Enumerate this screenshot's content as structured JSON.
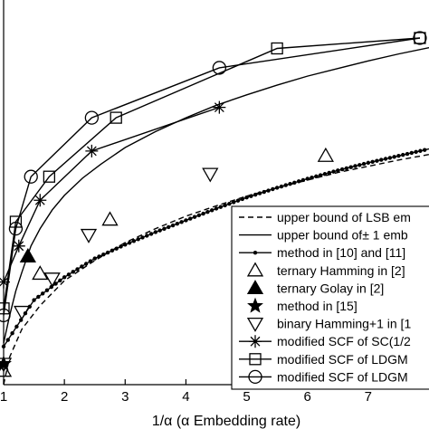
{
  "chart_data": {
    "type": "line",
    "xlabel": "1/α  (α Embedding rate)",
    "ylabel": "",
    "xlim": [
      1,
      8
    ],
    "ylim": [
      1,
      6
    ],
    "x_ticks": [
      "1",
      "2",
      "3",
      "4",
      "5",
      "6",
      "7"
    ],
    "grid": false,
    "legend_position": "lower-right",
    "series": [
      {
        "name": "upper bound of LSB em",
        "style": "dashed",
        "marker": "none",
        "x": [
          1.0,
          1.1,
          1.3,
          1.6,
          2.0,
          2.5,
          3.0,
          3.5,
          4.0,
          4.5,
          5.0,
          5.5,
          6.0,
          6.5,
          7.0,
          7.5,
          8.0
        ],
        "y": [
          1.0,
          1.4,
          1.8,
          2.14,
          2.5,
          2.79,
          3.05,
          3.25,
          3.43,
          3.58,
          3.72,
          3.84,
          3.95,
          4.06,
          4.15,
          4.24,
          4.32
        ]
      },
      {
        "name": "upper bound of± 1 emb",
        "style": "solid",
        "marker": "none",
        "x": [
          1.0,
          1.1,
          1.2,
          1.3,
          1.45,
          1.6,
          1.8,
          2.0,
          2.3,
          2.6,
          3.0,
          3.5,
          4.0,
          4.5,
          5.0,
          5.5,
          6.0,
          6.5,
          7.0,
          7.5,
          8.0
        ],
        "y": [
          1.6,
          2.0,
          2.35,
          2.62,
          3.0,
          3.25,
          3.52,
          3.73,
          3.98,
          4.18,
          4.42,
          4.65,
          4.85,
          5.03,
          5.18,
          5.32,
          5.45,
          5.56,
          5.67,
          5.77,
          5.86
        ]
      },
      {
        "name": "method in [10] and [11]",
        "style": "solid",
        "marker": "dot",
        "x": [
          1.0,
          1.5,
          2.0,
          2.5,
          3.0,
          3.5,
          4.0,
          4.5,
          5.0,
          5.5,
          6.0,
          6.5,
          7.0,
          7.5,
          8.0
        ],
        "y": [
          1.55,
          2.22,
          2.55,
          2.82,
          3.02,
          3.2,
          3.37,
          3.54,
          3.7,
          3.84,
          3.97,
          4.09,
          4.2,
          4.3,
          4.4
        ]
      },
      {
        "name": "ternary Hamming in [2]",
        "style": "none",
        "marker": "triangle-up",
        "x": [
          1.0,
          1.6,
          2.75,
          6.3
        ],
        "y": [
          1.2,
          2.6,
          3.38,
          4.3
        ]
      },
      {
        "name": "ternary Golay in [2]",
        "style": "none",
        "marker": "triangle-filled",
        "x": [
          1.4
        ],
        "y": [
          2.85
        ]
      },
      {
        "name": "method in [15]",
        "style": "none",
        "marker": "star",
        "x": [
          1.0
        ],
        "y": [
          1.3
        ]
      },
      {
        "name": "binary Hamming+1 in [1",
        "style": "none",
        "marker": "triangle-down",
        "x": [
          1.0,
          1.3,
          1.8,
          2.4,
          4.4
        ],
        "y": [
          1.3,
          2.05,
          2.53,
          3.16,
          4.04
        ]
      },
      {
        "name": "modified SCF of SC(1/2",
        "style": "solid",
        "marker": "asterisk",
        "x": [
          1.0,
          1.25,
          1.6,
          2.45,
          4.55
        ],
        "y": [
          2.48,
          3.0,
          3.66,
          4.37,
          5.0
        ]
      },
      {
        "name": "modified SCF of LDGM",
        "style": "solid",
        "marker": "square",
        "x": [
          1.0,
          1.2,
          1.75,
          2.85,
          5.5,
          7.85
        ],
        "y": [
          2.1,
          3.35,
          4.0,
          4.85,
          5.85,
          6.0
        ]
      },
      {
        "name": "modified SCF of LDGM",
        "style": "solid",
        "marker": "circle",
        "x": [
          1.0,
          1.2,
          1.45,
          2.45,
          4.55,
          7.85
        ],
        "y": [
          2.0,
          3.25,
          4.0,
          4.85,
          5.57,
          6.0
        ]
      }
    ]
  }
}
